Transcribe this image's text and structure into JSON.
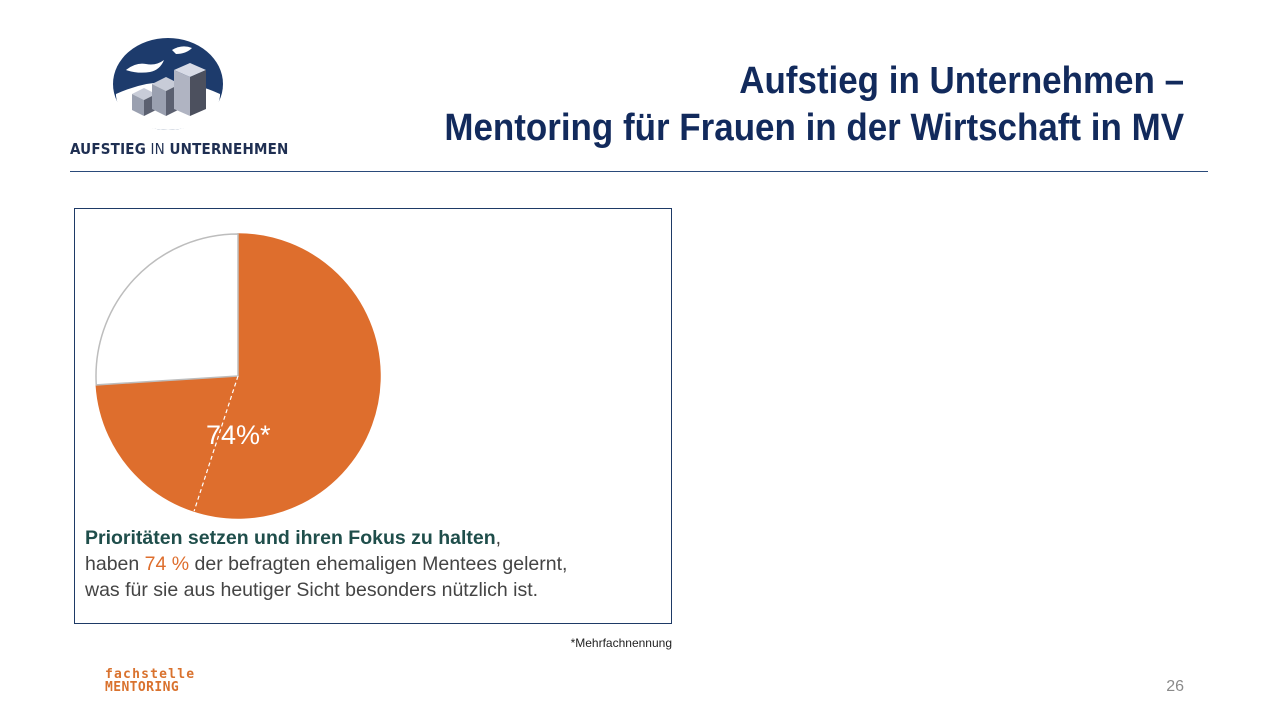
{
  "header": {
    "logo_word1": "AUFSTIEG",
    "logo_word2": "IN",
    "logo_word3": "UNTERNEHMEN",
    "title_line1": "Aufstieg in Unternehmen –",
    "title_line2": "Mentoring für Frauen in der Wirtschaft in MV"
  },
  "chart_data": {
    "type": "pie",
    "slices": [
      {
        "label": "74%*",
        "value": 74,
        "color": "#de6e2d"
      },
      {
        "value": 26,
        "color": "#ffffff"
      }
    ],
    "value_label": "74%*"
  },
  "caption": {
    "highlight": "Prioritäten setzen und ihren Fokus zu halten",
    "comma": ",",
    "part1": "haben ",
    "percent": "74 %",
    "part2": " der befragten ehemaligen Mentees gelernt,",
    "line3": "was für sie aus heutiger Sicht besonders nützlich ist."
  },
  "footnote": "*Mehrfachnennung",
  "footer": {
    "brand_line1": "fachstelle",
    "brand_line2": "MENTORING",
    "page_number": "26"
  },
  "colors": {
    "title": "#122a5c",
    "accent": "#de6e2d",
    "caption_highlight": "#1f4e4b"
  }
}
